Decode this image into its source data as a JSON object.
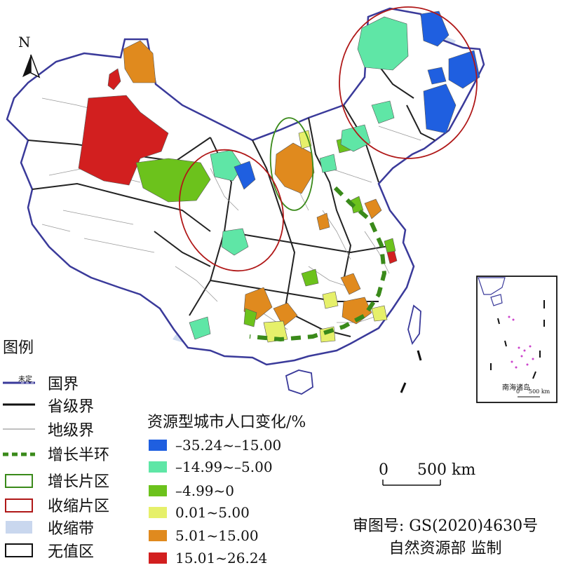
{
  "north_label": "N",
  "legend": {
    "title": "图例",
    "items": [
      {
        "label": "国界",
        "note": "未定"
      },
      {
        "label": "省级界"
      },
      {
        "label": "地级界"
      },
      {
        "label": "增长半环"
      },
      {
        "label": "增长片区"
      },
      {
        "label": "收缩片区"
      },
      {
        "label": "收缩带"
      },
      {
        "label": "无值区"
      }
    ]
  },
  "color_legend": {
    "title": "资源型城市人口变化/%",
    "classes": [
      {
        "label": "–35.24~–15.00",
        "color": "#1f5fe0"
      },
      {
        "label": "–14.99~–5.00",
        "color": "#5fe6a6"
      },
      {
        "label": "–4.99~0",
        "color": "#6cc21c"
      },
      {
        "label": "0.01~5.00",
        "color": "#e6f06a"
      },
      {
        "label": "5.01~15.00",
        "color": "#e08a1e"
      },
      {
        "label": "15.01~26.24",
        "color": "#d21f1f"
      }
    ]
  },
  "scale": {
    "zero": "0",
    "value": "500 km"
  },
  "inset": {
    "label": "南海诸岛",
    "scale_zero": "0",
    "scale_value": "500 km"
  },
  "credit": {
    "line1": "审图号: GS(2020)4630号",
    "line2": "自然资源部 监制"
  },
  "symbols": {
    "growth_ring_color": "#3a8a1a",
    "growth_area_color": "#3a8a1a",
    "shrink_area_color": "#b01818",
    "shrink_belt_color": "#c9d7ee"
  }
}
